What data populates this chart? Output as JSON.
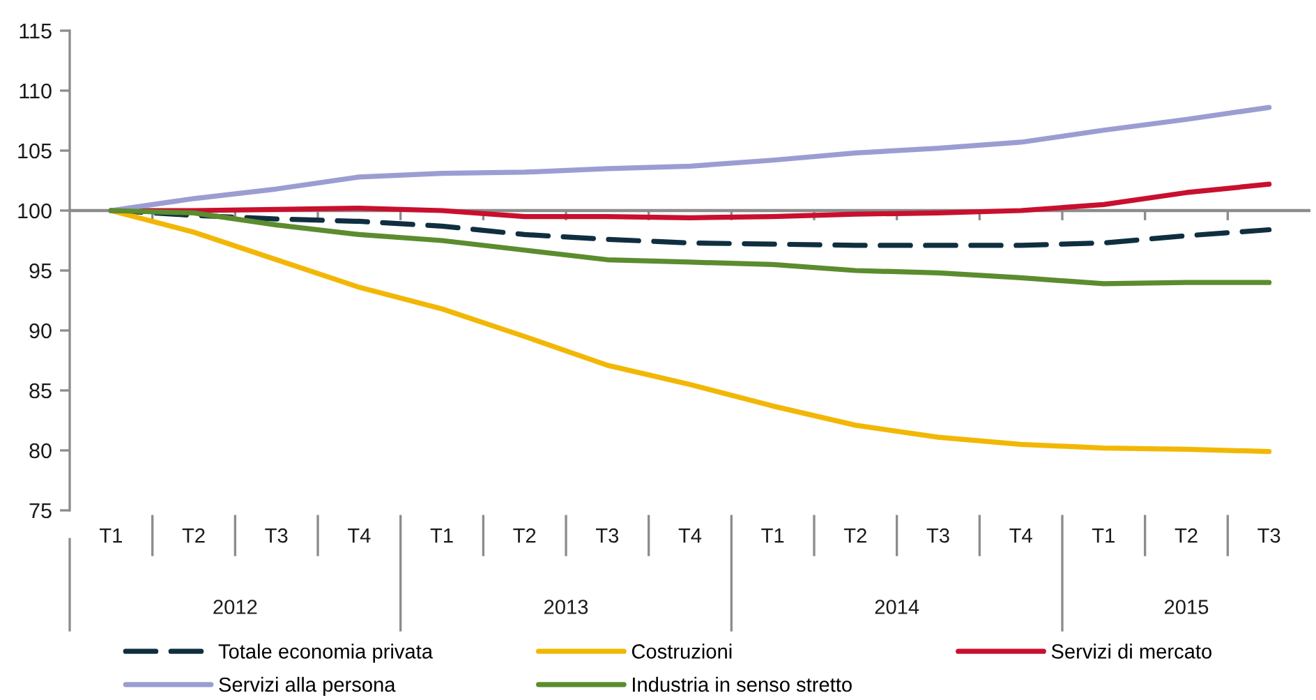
{
  "chart_data": {
    "type": "line",
    "categories": [
      "T1",
      "T2",
      "T3",
      "T4",
      "T1",
      "T2",
      "T3",
      "T4",
      "T1",
      "T2",
      "T3",
      "T4",
      "T1",
      "T2",
      "T3"
    ],
    "annotations": [
      "2012",
      "2013",
      "2014",
      "2015"
    ],
    "ylim": [
      75,
      115
    ],
    "yticks": [
      75,
      80,
      85,
      90,
      95,
      100,
      105,
      110,
      115
    ],
    "ref_lines": [
      {
        "axis": "y",
        "value": 100,
        "color": "#8c8c8c"
      }
    ],
    "legend": "bottom",
    "line_style": "solid",
    "series": [
      {
        "name": "Totale economia privata",
        "color": "#0f2f40",
        "line_style": "dashed",
        "values": [
          100,
          99.6,
          99.3,
          99.1,
          98.7,
          98.0,
          97.6,
          97.3,
          97.2,
          97.1,
          97.1,
          97.1,
          97.3,
          97.9,
          98.4
        ]
      },
      {
        "name": "Costruzioni",
        "color": "#f2b705",
        "values": [
          100,
          98.2,
          95.9,
          93.6,
          91.8,
          89.5,
          87.1,
          85.5,
          83.7,
          82.1,
          81.1,
          80.5,
          80.2,
          80.1,
          79.9
        ]
      },
      {
        "name": "Servizi di mercato",
        "color": "#c8102e",
        "values": [
          100,
          100.0,
          100.1,
          100.2,
          100.0,
          99.5,
          99.5,
          99.4,
          99.5,
          99.7,
          99.8,
          100.0,
          100.5,
          101.5,
          102.2
        ]
      },
      {
        "name": "Servizi alla persona",
        "color": "#9b9dd2",
        "values": [
          100,
          101.0,
          101.8,
          102.8,
          103.1,
          103.2,
          103.5,
          103.7,
          104.2,
          104.8,
          105.2,
          105.7,
          106.7,
          107.6,
          108.6
        ]
      },
      {
        "name": "Industria in senso stretto",
        "color": "#5b8c2e",
        "values": [
          100,
          99.8,
          98.8,
          98.0,
          97.5,
          96.7,
          95.9,
          95.7,
          95.5,
          95.0,
          94.8,
          94.4,
          93.9,
          94.0,
          94.0
        ]
      }
    ]
  }
}
